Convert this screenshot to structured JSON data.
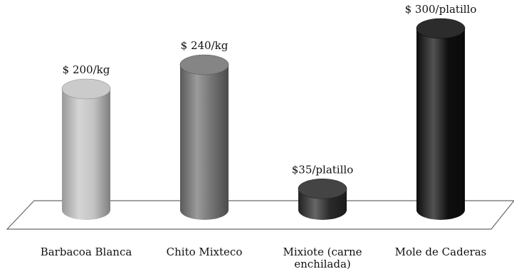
{
  "chart_data": {
    "type": "bar",
    "style": "3d-cylinder",
    "categories": [
      {
        "lines": [
          "Barbacoa  Blanca"
        ]
      },
      {
        "lines": [
          "Chito Mixteco"
        ]
      },
      {
        "lines": [
          "Mixiote (carne",
          "enchilada)"
        ]
      },
      {
        "lines": [
          "Mole de Caderas"
        ]
      }
    ],
    "values": [
      200,
      240,
      35,
      300
    ],
    "data_labels": [
      "$ 200/kg",
      "$ 240/kg",
      "$35/platillo",
      "$ 300/platillo"
    ],
    "colors": [
      "#c4c4c4",
      "#747474",
      "#2a2a2a",
      "#0f0f0f"
    ],
    "ylim": [
      0,
      300
    ],
    "grid": false,
    "legend": "none"
  }
}
